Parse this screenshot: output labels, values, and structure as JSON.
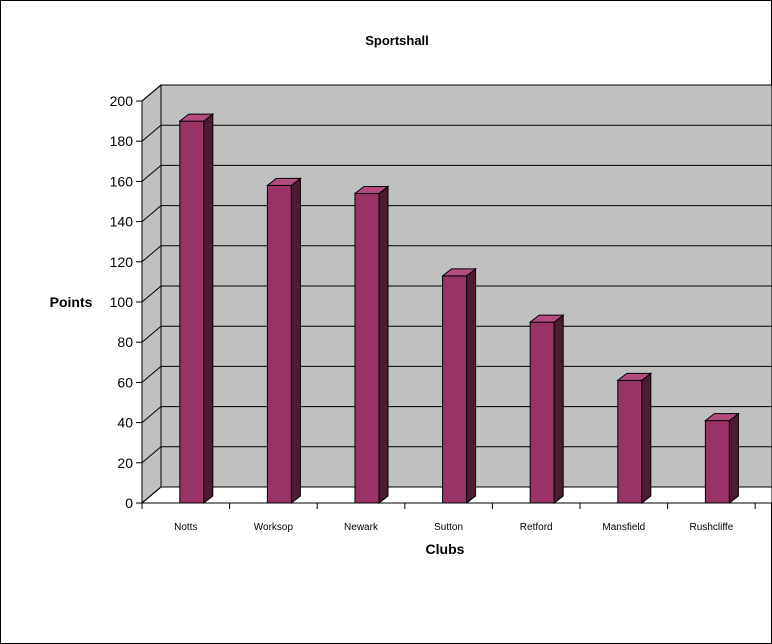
{
  "chart_data": {
    "type": "bar",
    "style": "3d-column",
    "title": "Sportshall",
    "xlabel": "Clubs",
    "ylabel": "Points",
    "categories": [
      "Notts",
      "Worksop",
      "Newark",
      "Sutton",
      "Retford",
      "Mansfield",
      "Rushcliffe"
    ],
    "series": [
      {
        "values": [
          190,
          158,
          154,
          113,
          90,
          61,
          41
        ]
      }
    ],
    "ylim": [
      0,
      200
    ],
    "yticks": [
      0,
      20,
      40,
      60,
      80,
      100,
      120,
      140,
      160,
      180,
      200
    ],
    "grid": true,
    "legend": "none"
  },
  "colors": {
    "bar_front": "#993366",
    "bar_side": "#4d1a33",
    "bar_top": "#b34d80",
    "plot_wall": "#c0c0c0",
    "floor": "#ffffff",
    "gridline": "#000000",
    "frame": "#000000"
  }
}
